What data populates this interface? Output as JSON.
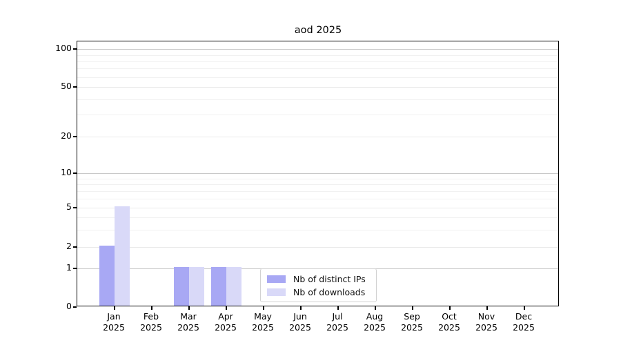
{
  "chart_data": {
    "type": "bar",
    "title": "aod 2025",
    "categories": [
      "Jan 2025",
      "Feb 2025",
      "Mar 2025",
      "Apr 2025",
      "May 2025",
      "Jun 2025",
      "Jul 2025",
      "Aug 2025",
      "Sep 2025",
      "Oct 2025",
      "Nov 2025",
      "Dec 2025"
    ],
    "series": [
      {
        "name": "Nb of distinct IPs",
        "color": "#a8a8f4",
        "values": [
          2,
          0,
          1,
          1,
          0,
          0,
          0,
          0,
          0,
          0,
          0,
          0
        ]
      },
      {
        "name": "Nb of downloads",
        "color": "#d9d9f8",
        "values": [
          5,
          0,
          1,
          1,
          0,
          0,
          0,
          0,
          0,
          0,
          0,
          0
        ]
      }
    ],
    "yscale": "symlog",
    "yticks": [
      0,
      1,
      2,
      5,
      10,
      20,
      50,
      100
    ],
    "ylim": [
      0,
      140
    ],
    "grid": true,
    "legend_position": "lower center",
    "colors": {
      "major_gridline": "#c9c9c9",
      "labeled_gridline": "#e9e9e9",
      "minor_gridline": "#f1f1f1"
    }
  }
}
